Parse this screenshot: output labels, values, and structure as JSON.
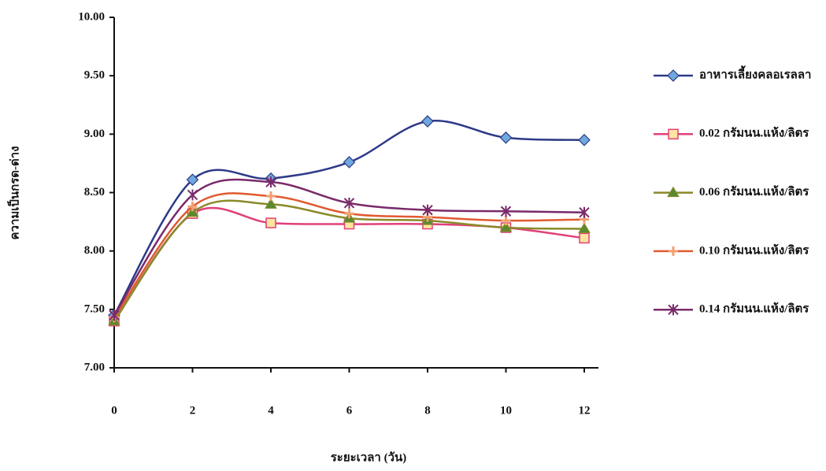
{
  "chart_data": {
    "type": "line",
    "x": [
      0,
      2,
      4,
      6,
      8,
      10,
      12
    ],
    "xlim": [
      0,
      12
    ],
    "xticks": [
      0,
      2,
      4,
      6,
      8,
      10,
      12
    ],
    "ylim": [
      7,
      10
    ],
    "yticks": [
      {
        "value": 7,
        "label": "7.00"
      },
      {
        "value": 7.5,
        "label": "7.50"
      },
      {
        "value": 8,
        "label": "8.00"
      },
      {
        "value": 8.5,
        "label": "8.50"
      },
      {
        "value": 9,
        "label": "9.00"
      },
      {
        "value": 9.5,
        "label": "9.50"
      },
      {
        "value": 10,
        "label": "10.00"
      }
    ],
    "x_label": "ระยะเวลา (วัน)",
    "y_label": "ความเป็นกรด-ด่าง",
    "grid": false,
    "legend": "right",
    "series": [
      {
        "name": "อาหารเลี้ยงคลอเรลลา",
        "color": "#2e3a87",
        "marker": "diamond",
        "marker_color": "#6fa8dc",
        "values": [
          7.45,
          8.61,
          8.62,
          8.76,
          9.11,
          8.97,
          8.95
        ]
      },
      {
        "name": "0.02 กรัมนน.แห้ง/ลิตร",
        "color": "#e0407a",
        "marker": "square",
        "marker_color": "#ffe5a0",
        "values": [
          7.4,
          8.32,
          8.24,
          8.23,
          8.23,
          8.2,
          8.11
        ]
      },
      {
        "name": "0.06 กรัมนน.แห้ง/ลิตร",
        "color": "#8a8a2a",
        "marker": "triangle",
        "marker_color": "#5a8a30",
        "values": [
          7.4,
          8.33,
          8.4,
          8.28,
          8.26,
          8.2,
          8.19
        ]
      },
      {
        "name": "0.10 กรัมนน.แห้ง/ลิตร",
        "color": "#e05a30",
        "marker": "plus",
        "marker_color": "#f0a070",
        "values": [
          7.43,
          8.38,
          8.47,
          8.32,
          8.29,
          8.26,
          8.27
        ]
      },
      {
        "name": "0.14 กรัมนน.แห้ง/ลิตร",
        "color": "#7a2a6a",
        "marker": "star",
        "marker_color": "#7a2a6a",
        "values": [
          7.45,
          8.48,
          8.59,
          8.41,
          8.35,
          8.34,
          8.33
        ]
      }
    ]
  }
}
